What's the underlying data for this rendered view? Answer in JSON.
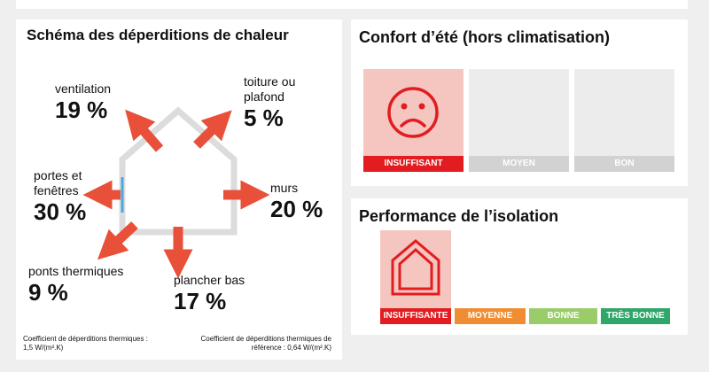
{
  "heat_loss": {
    "title": "Schéma des déperditions de chaleur",
    "items": [
      {
        "key": "ventilation",
        "label": "ventilation",
        "percent": "19 %"
      },
      {
        "key": "roof",
        "label": "toiture ou\nplafond",
        "percent": "5 %"
      },
      {
        "key": "doors",
        "label": "portes et\nfenêtres",
        "percent": "30 %"
      },
      {
        "key": "walls",
        "label": "murs",
        "percent": "20 %"
      },
      {
        "key": "bridges",
        "label": "ponts thermiques",
        "percent": "9 %"
      },
      {
        "key": "floor",
        "label": "plancher bas",
        "percent": "17 %"
      }
    ],
    "coef_text": "Coefficient de déperditions thermiques :\n1,5 W/(m².K)",
    "ref_coef_text": "Coefficient de déperditions thermiques de\nréférence : 0,64 W/(m².K)",
    "arrow_color": "#e8503a",
    "house_color": "#dcdcdc",
    "window_color": "#4aa8e0"
  },
  "summer_comfort": {
    "title": "Confort d’été (hors climatisation)",
    "levels": [
      "INSUFFISANT",
      "MOYEN",
      "BON"
    ],
    "selected": "INSUFFISANT",
    "icon": "sad-face-icon",
    "active_color": "#e21c20"
  },
  "insulation": {
    "title": "Performance de l’isolation",
    "levels": [
      {
        "label": "INSUFFISANTE",
        "color": "#e21c20"
      },
      {
        "label": "MOYENNE",
        "color": "#f08c32"
      },
      {
        "label": "BONNE",
        "color": "#9acd6a"
      },
      {
        "label": "TRÈS BONNE",
        "color": "#2fa66a"
      }
    ],
    "selected": "INSUFFISANTE",
    "icon": "house-outline-icon"
  }
}
